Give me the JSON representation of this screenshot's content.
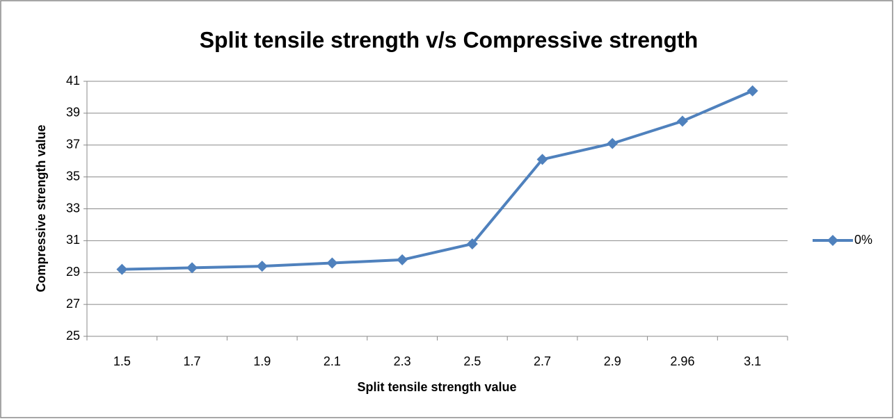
{
  "chart_data": {
    "type": "line",
    "title": "Split tensile strength v/s Compressive strength",
    "x_label": "Split tensile strength value",
    "y_label": "Compressive strength value",
    "categories": [
      "1.5",
      "1.7",
      "1.9",
      "2.1",
      "2.3",
      "2.5",
      "2.7",
      "2.9",
      "2.96",
      "3.1"
    ],
    "series": [
      {
        "name": "0%",
        "color": "#4f81bd",
        "values": [
          29.2,
          29.3,
          29.4,
          29.6,
          29.8,
          30.8,
          36.1,
          37.1,
          38.5,
          40.4
        ]
      }
    ],
    "ylim": [
      25,
      41
    ],
    "yticks": [
      25,
      27,
      29,
      31,
      33,
      35,
      37,
      39,
      41
    ],
    "grid": true,
    "legend": "right"
  }
}
